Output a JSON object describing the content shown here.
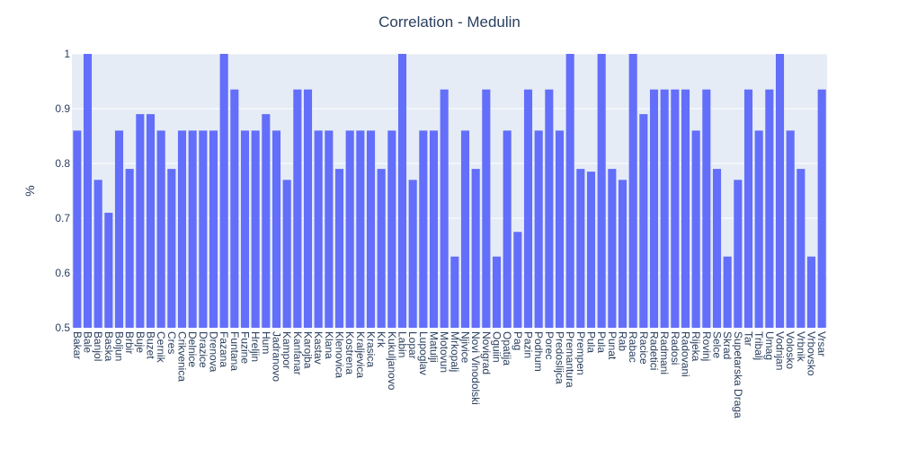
{
  "chart_data": {
    "type": "bar",
    "title": "Correlation - Medulin",
    "xlabel": "",
    "ylabel": "%",
    "ylim": [
      0.5,
      1
    ],
    "yticks": [
      "0.5",
      "0.6",
      "0.7",
      "0.8",
      "0.9",
      "1"
    ],
    "grid": true,
    "bar_color": "#636efa",
    "plot_bg": "#e5ecf6",
    "text_color": "#2a3f5f",
    "categories": [
      "Bakar",
      "Bale",
      "Banjol",
      "Baska",
      "Boljun",
      "Brbir",
      "Buje",
      "Buzet",
      "Cernik",
      "Cres",
      "Crikvenica",
      "Delnice",
      "Drazice",
      "Drenova",
      "Fazana",
      "Funtana",
      "Fuzine",
      "Hreljin",
      "Hum",
      "Jadranovo",
      "Kampor",
      "Kanfanar",
      "Karojba",
      "Kastav",
      "Klana",
      "Klenovica",
      "Kostrena",
      "Kraljevica",
      "Krasica",
      "Krk",
      "Kukuljanovo",
      "Labin",
      "Lopar",
      "Lupoglav",
      "Matulji",
      "Motovun",
      "Mrkopalj",
      "Njivice",
      "Novi Vinodolski",
      "Novigrad",
      "Oguiin",
      "Opatija",
      "Pag",
      "Pazin",
      "Podhum",
      "Porec",
      "Predoslijca",
      "Premantura",
      "Prempen",
      "Pula2",
      "Pula",
      "Punat",
      "Rab",
      "Rabac",
      "Racice",
      "Radetici",
      "Radmani",
      "Radosi",
      "Radovani",
      "Rijeka",
      "Rovinj",
      "Selce",
      "Skrad",
      "Supetarska Draga",
      "Tar",
      "Tribalj",
      "Umag",
      "Vodnjan",
      "Volosko",
      "Vrbnik",
      "Vrbovsko",
      "Vrsar"
    ],
    "category_labels": [
      "Bakar",
      "Bale",
      "Banjol",
      "Baska",
      "Boljun",
      "Brbir",
      "Buje",
      "Buzet",
      "Cernik",
      "Cres",
      "Crikvenica",
      "Delnice",
      "Drazice",
      "Drenova",
      "Fazana",
      "Funtana",
      "Fuzine",
      "Hreljin",
      "Hum",
      "Jadranovo",
      "Kampor",
      "Kanfanar",
      "Karojba",
      "Kastav",
      "Klana",
      "Klenovica",
      "Kostrena",
      "Kraljevica",
      "Krasica",
      "Krk",
      "Kukuljanovo",
      "Labin",
      "Lopar",
      "Lupoglav",
      "Matulji",
      "Motovun",
      "Mrkopalj",
      "Njivice",
      "Novi Vinodolski",
      "Novigrad",
      "Oguiin",
      "Opatija",
      "Pag",
      "Pazin",
      "Podhum",
      "Porec",
      "Predoslijca",
      "Premantura",
      "Prempen",
      "Pula",
      "Pula",
      "Punat",
      "Rab",
      "Rabac",
      "Racice",
      "Radetici",
      "Radmani",
      "Radosi",
      "Radovani",
      "Rijeka",
      "Rovinj",
      "Selce",
      "Skrad",
      "Supetarska Draga",
      "Tar",
      "Tribalj",
      "Umag",
      "Vodnjan",
      "Volosko",
      "Vrbnik",
      "Vrbovsko",
      "Vrsar"
    ],
    "values": [
      0.86,
      1.0,
      0.77,
      0.71,
      0.86,
      0.79,
      0.89,
      0.89,
      0.86,
      0.79,
      0.86,
      0.86,
      0.86,
      0.86,
      1.0,
      0.935,
      0.86,
      0.86,
      0.89,
      0.86,
      0.77,
      0.935,
      0.935,
      0.86,
      0.86,
      0.79,
      0.86,
      0.86,
      0.86,
      0.79,
      0.86,
      1.0,
      0.77,
      0.86,
      0.86,
      0.935,
      0.63,
      0.86,
      0.79,
      0.935,
      0.63,
      0.86,
      0.675,
      0.935,
      0.86,
      0.935,
      0.86,
      1.0,
      0.79,
      0.785,
      1.0,
      0.79,
      0.77,
      1.0,
      0.89,
      0.935,
      0.935,
      0.935,
      0.935,
      0.86,
      0.935,
      0.79,
      0.63,
      0.77,
      0.935,
      0.86,
      0.935,
      1.0,
      0.86,
      0.79,
      0.63,
      0.935
    ]
  }
}
